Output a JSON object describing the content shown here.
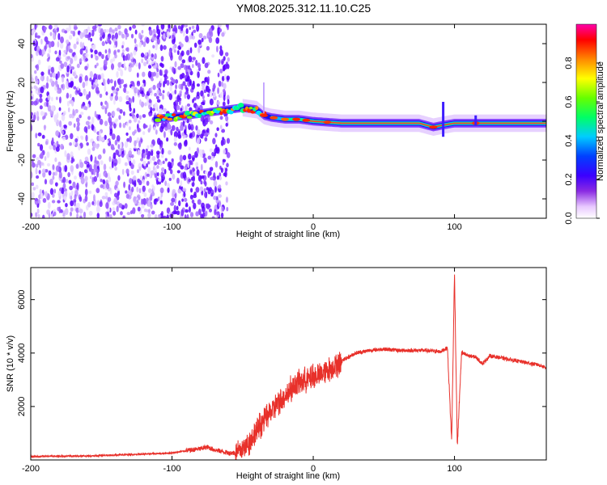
{
  "title": "YM08.2025.312.11.10.C25",
  "chart_data": [
    {
      "type": "heatmap",
      "name": "spectrogram",
      "xlabel": "Height of straight line (km)",
      "ylabel": "Frequency (Hz)",
      "xlim": [
        -200,
        165
      ],
      "ylim": [
        -50,
        50
      ],
      "x_ticks": [
        -200,
        -100,
        0,
        100
      ],
      "x_tick_labels": [
        "-200",
        "-100",
        "0",
        "100"
      ],
      "y_ticks": [
        -40,
        -20,
        0,
        20,
        40
      ],
      "y_tick_labels": [
        "-40",
        "-20",
        "0",
        "20",
        "40"
      ],
      "ridge": {
        "description_points_x": [
          -113,
          -100,
          -90,
          -80,
          -70,
          -60,
          -50,
          -40,
          -35,
          -30,
          -20,
          -10,
          0,
          20,
          40,
          60,
          75,
          85,
          92,
          100,
          115,
          130,
          150,
          165
        ],
        "description_points_freq": [
          1,
          2,
          3,
          4,
          5,
          6,
          7,
          6,
          3,
          2,
          1,
          1,
          0,
          -1,
          -1,
          -1,
          -1,
          -3,
          -2,
          -1,
          -1,
          -1,
          -1,
          -1
        ]
      },
      "colorbar": {
        "label": "Normalized spectral amplitude",
        "range": [
          0.0,
          1.0
        ],
        "ticks": [
          "0.0",
          "0.2",
          "0.4",
          "0.6",
          "0.8"
        ]
      }
    },
    {
      "type": "line",
      "name": "snr",
      "xlabel": "Height of straight line (km)",
      "ylabel": "SNR (10 * v/v)",
      "xlim": [
        -200,
        165
      ],
      "ylim": [
        0,
        7200
      ],
      "x_ticks": [
        -200,
        -100,
        0,
        100
      ],
      "x_tick_labels": [
        "-200",
        "-100",
        "0",
        "100"
      ],
      "y_ticks": [
        2000,
        4000,
        6000
      ],
      "y_tick_labels": [
        "2000",
        "4000",
        "6000"
      ],
      "series": [
        {
          "name": "SNR",
          "color": "#e8302a",
          "x": [
            -200,
            -180,
            -160,
            -140,
            -120,
            -100,
            -90,
            -80,
            -75,
            -70,
            -60,
            -55,
            -50,
            -45,
            -40,
            -35,
            -30,
            -25,
            -20,
            -15,
            -10,
            -5,
            0,
            5,
            10,
            20,
            30,
            40,
            50,
            60,
            70,
            80,
            90,
            95,
            98,
            100,
            102,
            105,
            110,
            115,
            120,
            125,
            130,
            140,
            150,
            160,
            165
          ],
          "values": [
            130,
            140,
            150,
            180,
            220,
            260,
            340,
            420,
            480,
            380,
            260,
            260,
            400,
            700,
            1100,
            1500,
            1800,
            2100,
            2400,
            2700,
            2900,
            3000,
            3100,
            3200,
            3350,
            3700,
            4000,
            4100,
            4150,
            4100,
            4100,
            4100,
            4050,
            4200,
            700,
            7000,
            500,
            4000,
            3900,
            3850,
            3600,
            3900,
            3850,
            3750,
            3650,
            3550,
            3450
          ]
        }
      ]
    }
  ]
}
